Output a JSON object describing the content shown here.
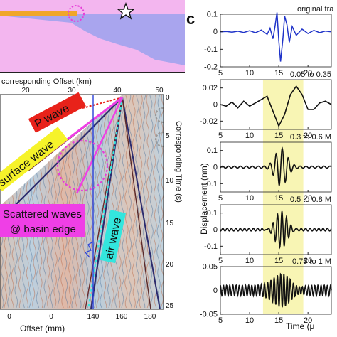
{
  "colors": {
    "basin_fill": "#a9a5ee",
    "sediment_fill": "#f3b6ef",
    "surface_bar": "#f0a62a",
    "p_wave_label_bg": "#e8221a",
    "surface_wave_label_bg": "#f6f32a",
    "scattered_label_bg": "#ef3fe6",
    "air_wave_label_bg": "#33e6de",
    "trace_original": "#1f33c9",
    "trace_filtered": "#111111",
    "highlight_window": "#f8f5b4"
  },
  "icons": {
    "source_marker": "star-icon"
  },
  "left_panel": {
    "top_axis_label": "corresponding Offset (km)",
    "top_ticks": [
      "20",
      "30",
      "40",
      "50"
    ],
    "bottom_axis_label": "Offset (mm)",
    "bottom_ticks": [
      "140",
      "160",
      "180"
    ],
    "bottom_ticks_partial": [
      "0",
      "0"
    ],
    "right_axis_label": "Corresponding Time (s)",
    "right_ticks": [
      "0",
      "5",
      "10",
      "15",
      "20",
      "25"
    ],
    "annotations": {
      "p_wave": "P wave",
      "surface_wave": "surface wave",
      "scattered_line1": "Scattered waves",
      "scattered_line2": "@ basin edge",
      "air_wave": "air wave"
    }
  },
  "right_panel": {
    "panel_letter": "c",
    "ylabel": "Displacement (nm)",
    "xlabel": "Time (μ",
    "trace_labels": [
      "original tra",
      "0.05 to 0.35",
      "0.3 to 0.6 M",
      "0.5 to 0.8 M",
      "0.75 to 1 M"
    ]
  },
  "chart_data": {
    "type": "line",
    "xlabel": "Time (μ",
    "ylabel": "Displacement (nm)",
    "highlight_window_x": [
      12.3,
      19.2
    ],
    "subplots": [
      {
        "label": "original tra",
        "xlim": [
          5,
          24
        ],
        "ylim": [
          -0.2,
          0.1
        ],
        "yticks": [
          0.1,
          0,
          -0.1,
          -0.2
        ],
        "xticks": [
          5,
          10,
          15,
          20
        ],
        "color": "#1f33c9",
        "x": [
          5,
          6,
          7,
          8,
          9,
          10,
          11,
          12,
          13,
          13.5,
          14,
          14.3,
          14.7,
          15.0,
          15.3,
          15.7,
          16.0,
          16.4,
          16.8,
          17.3,
          18,
          19,
          20,
          21,
          22,
          23,
          24
        ],
        "y": [
          0,
          0.002,
          -0.002,
          0.003,
          -0.004,
          0.006,
          -0.006,
          0.01,
          -0.015,
          0.02,
          -0.04,
          0.02,
          0.11,
          -0.05,
          -0.17,
          -0.04,
          0.09,
          0.04,
          -0.06,
          0.03,
          -0.02,
          0.015,
          -0.01,
          0.008,
          -0.005,
          0.004,
          0
        ]
      },
      {
        "label": "0.05 to 0.35",
        "xlim": [
          5,
          24
        ],
        "ylim": [
          -0.03,
          0.03
        ],
        "yticks": [
          0.02,
          0,
          -0.02
        ],
        "xticks": [
          5,
          10,
          15,
          20
        ],
        "color": "#111111",
        "x": [
          5,
          6,
          7,
          8,
          9,
          10,
          11,
          12,
          13,
          14,
          15,
          16,
          17,
          18,
          19,
          20,
          21,
          22,
          23,
          24
        ],
        "y": [
          0,
          -0.002,
          0.003,
          -0.004,
          0.004,
          -0.002,
          0.002,
          0.006,
          0.01,
          -0.008,
          -0.026,
          -0.012,
          0.012,
          0.022,
          0.012,
          -0.006,
          -0.006,
          0.002,
          0.004,
          0
        ]
      },
      {
        "label": "0.3 to 0.6 M",
        "xlim": [
          5,
          24
        ],
        "ylim": [
          -0.15,
          0.15
        ],
        "yticks": [
          0.1,
          0,
          -0.1
        ],
        "xticks": [
          5,
          10,
          15,
          20
        ],
        "color": "#111111",
        "amp": 0.11,
        "freq": 0.95,
        "center": 15.4,
        "width": 1.4,
        "noise": 0.006
      },
      {
        "label": "0.5 to 0.8 M",
        "xlim": [
          5,
          24
        ],
        "ylim": [
          -0.15,
          0.15
        ],
        "yticks": [
          0.1,
          0,
          -0.1
        ],
        "xticks": [
          5,
          10,
          15,
          20
        ],
        "color": "#111111",
        "amp": 0.12,
        "freq": 1.3,
        "center": 15.4,
        "width": 1.5,
        "noise": 0.008
      },
      {
        "label": "0.75 to 1 M",
        "xlim": [
          5,
          24
        ],
        "ylim": [
          -0.05,
          0.05
        ],
        "yticks": [
          0.05,
          0,
          -0.05
        ],
        "xticks": [
          5,
          10,
          15,
          20
        ],
        "color": "#111111",
        "amp": 0.032,
        "freq": 1.8,
        "center": 15.8,
        "width": 2.2,
        "noise": 0.011
      }
    ]
  }
}
